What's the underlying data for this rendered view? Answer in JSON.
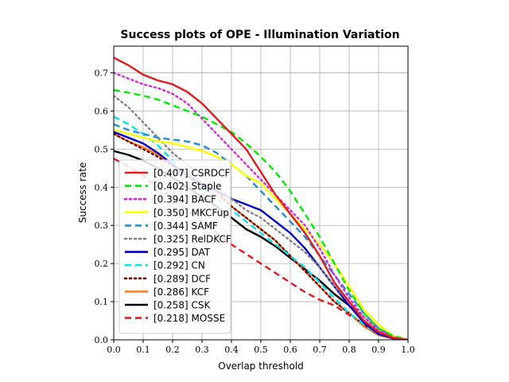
{
  "chart_data": {
    "type": "line",
    "title": "Success plots of OPE - Illumination Variation",
    "xlabel": "Overlap threshold",
    "ylabel": "Success rate",
    "xlim": [
      0.0,
      1.0
    ],
    "ylim": [
      0.0,
      0.77
    ],
    "xticks": [
      "0.0",
      "0.1",
      "0.2",
      "0.3",
      "0.4",
      "0.5",
      "0.6",
      "0.7",
      "0.8",
      "0.9",
      "1.0"
    ],
    "yticks": [
      "0.0",
      "0.1",
      "0.2",
      "0.3",
      "0.4",
      "0.5",
      "0.6",
      "0.7"
    ],
    "grid": true,
    "legend_position": "lower-left",
    "x": [
      0,
      0.05,
      0.1,
      0.15,
      0.2,
      0.25,
      0.3,
      0.35,
      0.4,
      0.45,
      0.5,
      0.55,
      0.6,
      0.65,
      0.7,
      0.75,
      0.8,
      0.85,
      0.9,
      0.95,
      1.0
    ],
    "series": [
      {
        "name": "[0.407] CSRDCF",
        "color": "#e41a1c",
        "dash": "solid",
        "values": [
          0.74,
          0.72,
          0.695,
          0.68,
          0.67,
          0.65,
          0.62,
          0.58,
          0.54,
          0.5,
          0.44,
          0.38,
          0.33,
          0.28,
          0.22,
          0.15,
          0.1,
          0.05,
          0.02,
          0.005,
          0
        ]
      },
      {
        "name": "[0.402] Staple",
        "color": "#00ee00",
        "dash": "dashed",
        "values": [
          0.655,
          0.648,
          0.64,
          0.63,
          0.615,
          0.6,
          0.585,
          0.565,
          0.545,
          0.515,
          0.48,
          0.44,
          0.39,
          0.33,
          0.27,
          0.2,
          0.13,
          0.07,
          0.03,
          0.01,
          0
        ]
      },
      {
        "name": "[0.394] BACF",
        "color": "#e020e0",
        "dash": "dotted",
        "values": [
          0.7,
          0.685,
          0.67,
          0.66,
          0.645,
          0.62,
          0.58,
          0.54,
          0.5,
          0.46,
          0.42,
          0.38,
          0.34,
          0.3,
          0.24,
          0.17,
          0.11,
          0.06,
          0.025,
          0.007,
          0
        ]
      },
      {
        "name": "[0.350] MKCFup",
        "color": "#ffff00",
        "dash": "solid",
        "values": [
          0.55,
          0.54,
          0.53,
          0.52,
          0.515,
          0.505,
          0.495,
          0.48,
          0.46,
          0.43,
          0.41,
          0.37,
          0.33,
          0.29,
          0.25,
          0.2,
          0.14,
          0.08,
          0.04,
          0.01,
          0
        ]
      },
      {
        "name": "[0.344] SAMF",
        "color": "#1f8fd6",
        "dash": "dashed",
        "values": [
          0.565,
          0.55,
          0.54,
          0.53,
          0.525,
          0.52,
          0.51,
          0.49,
          0.46,
          0.43,
          0.39,
          0.35,
          0.31,
          0.27,
          0.22,
          0.17,
          0.12,
          0.07,
          0.03,
          0.01,
          0
        ]
      },
      {
        "name": "[0.325] RelDKCF",
        "color": "#808080",
        "dash": "dotted",
        "values": [
          0.64,
          0.61,
          0.57,
          0.53,
          0.49,
          0.46,
          0.43,
          0.4,
          0.37,
          0.34,
          0.32,
          0.29,
          0.26,
          0.23,
          0.19,
          0.14,
          0.1,
          0.06,
          0.025,
          0.008,
          0
        ]
      },
      {
        "name": "[0.295] DAT",
        "color": "#0000cc",
        "dash": "solid",
        "values": [
          0.545,
          0.53,
          0.515,
          0.49,
          0.46,
          0.43,
          0.405,
          0.39,
          0.37,
          0.355,
          0.34,
          0.31,
          0.28,
          0.24,
          0.19,
          0.14,
          0.09,
          0.045,
          0.015,
          0.004,
          0
        ]
      },
      {
        "name": "[0.292] CN",
        "color": "#00e5ee",
        "dash": "dashed",
        "values": [
          0.585,
          0.565,
          0.54,
          0.51,
          0.47,
          0.43,
          0.4,
          0.37,
          0.34,
          0.31,
          0.28,
          0.25,
          0.22,
          0.19,
          0.15,
          0.11,
          0.07,
          0.04,
          0.015,
          0.004,
          0
        ]
      },
      {
        "name": "[0.289] DCF",
        "color": "#7f0000",
        "dash": "dotted",
        "values": [
          0.54,
          0.52,
          0.5,
          0.48,
          0.455,
          0.43,
          0.41,
          0.39,
          0.35,
          0.32,
          0.29,
          0.26,
          0.22,
          0.18,
          0.14,
          0.1,
          0.07,
          0.04,
          0.015,
          0.004,
          0
        ]
      },
      {
        "name": "[0.286] KCF",
        "color": "#ff7f24",
        "dash": "solid",
        "values": [
          0.54,
          0.52,
          0.505,
          0.485,
          0.46,
          0.435,
          0.41,
          0.38,
          0.35,
          0.32,
          0.29,
          0.26,
          0.22,
          0.18,
          0.14,
          0.1,
          0.07,
          0.035,
          0.012,
          0.003,
          0
        ]
      },
      {
        "name": "[0.258] CSK",
        "color": "#000000",
        "dash": "solid",
        "values": [
          0.495,
          0.485,
          0.47,
          0.45,
          0.425,
          0.4,
          0.375,
          0.35,
          0.32,
          0.29,
          0.27,
          0.245,
          0.215,
          0.185,
          0.155,
          0.12,
          0.09,
          0.05,
          0.02,
          0.005,
          0
        ]
      },
      {
        "name": "[0.218] MOSSE",
        "color": "#e41a1c",
        "dash": "dashed",
        "values": [
          0.475,
          0.455,
          0.43,
          0.4,
          0.37,
          0.34,
          0.31,
          0.28,
          0.25,
          0.225,
          0.2,
          0.175,
          0.15,
          0.125,
          0.105,
          0.09,
          0.065,
          0.04,
          0.02,
          0.006,
          0
        ]
      }
    ]
  }
}
